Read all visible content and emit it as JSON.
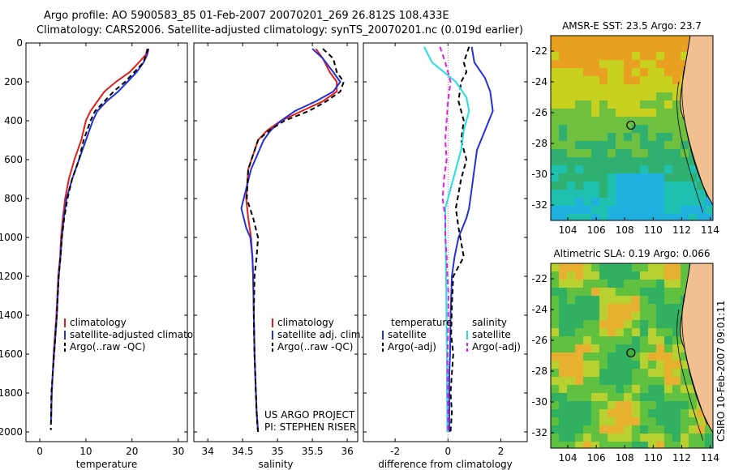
{
  "header": {
    "line1": "Argo profile: AO 5900583_85 01-Feb-2007 20070201_269 26.812S 108.433E",
    "line2": "Climatology: CARS2006. Satellite-adjusted climatology: synTS_20070201.nc (0.019d earlier)"
  },
  "colors": {
    "climatology": "#e0201a",
    "satellite": "#2430d8",
    "argo": "#000000",
    "sat_salinity": "#22e0e0",
    "argo_salinity": "#e020e0"
  },
  "chart_data": [
    {
      "type": "line",
      "xlabel": "temperature",
      "ylabel": "",
      "xlim": [
        -3,
        32
      ],
      "ylim": [
        2050,
        0
      ],
      "xticks": [
        0,
        10,
        20,
        30
      ],
      "yticks": [
        0,
        200,
        400,
        600,
        800,
        1000,
        1200,
        1400,
        1600,
        1800,
        2000
      ],
      "legend": [
        "climatology",
        "satellite-adjusted climatology",
        "Argo(..raw -QC)"
      ],
      "series": [
        {
          "name": "climatology",
          "color": "#e0201a",
          "dash": "",
          "x": [
            23.3,
            23.0,
            21.5,
            19.5,
            16.5,
            14.0,
            12.5,
            11.0,
            10.0,
            9.0,
            7.5,
            6.3,
            5.5,
            5.0,
            4.6,
            4.4,
            4.0,
            3.6,
            3.3,
            3.0,
            2.8,
            2.6,
            2.45
          ],
          "y": [
            30,
            60,
            100,
            150,
            200,
            250,
            300,
            350,
            400,
            500,
            600,
            700,
            800,
            900,
            1000,
            1100,
            1200,
            1400,
            1500,
            1600,
            1700,
            1800,
            1950
          ]
        },
        {
          "name": "satellite-adjusted climatology",
          "color": "#2430d8",
          "dash": "",
          "x": [
            23.6,
            23.3,
            22.5,
            21.0,
            19.0,
            17.0,
            14.5,
            12.5,
            11.5,
            10.0,
            8.5,
            7.0,
            5.8,
            5.2,
            4.8,
            4.5,
            4.1,
            3.7,
            3.4,
            3.1,
            2.8,
            2.6,
            2.45
          ],
          "y": [
            30,
            60,
            100,
            150,
            200,
            250,
            300,
            350,
            400,
            500,
            600,
            700,
            800,
            900,
            1000,
            1100,
            1200,
            1400,
            1500,
            1600,
            1700,
            1800,
            1950
          ]
        },
        {
          "name": "Argo(..raw -QC)",
          "color": "#000000",
          "dash": "6,4",
          "x": [
            23.5,
            23.0,
            22.5,
            20.5,
            18.5,
            16.0,
            14.0,
            12.0,
            11.0,
            9.5,
            8.5,
            7.0,
            6.0,
            5.3,
            4.8,
            4.5,
            4.1,
            3.7,
            3.4,
            3.1,
            2.8,
            2.5,
            2.4
          ],
          "y": [
            30,
            60,
            100,
            150,
            200,
            250,
            300,
            350,
            400,
            500,
            600,
            700,
            800,
            900,
            1000,
            1100,
            1200,
            1400,
            1500,
            1600,
            1700,
            1800,
            1990
          ]
        }
      ]
    },
    {
      "type": "line",
      "xlabel": "salinity",
      "ylabel": "",
      "xlim": [
        33.8,
        36.15
      ],
      "ylim": [
        2050,
        0
      ],
      "xticks": [
        34,
        34.5,
        35,
        35.5,
        36
      ],
      "xticklabels": [
        "34",
        "34.5",
        "35",
        "35.5",
        "36"
      ],
      "legend": [
        "climatology",
        "satellite adj. clim.",
        "Argo(..raw -QC)"
      ],
      "annotations": [
        "US ARGO PROJECT",
        "PI: STEPHEN RISER"
      ],
      "series": [
        {
          "name": "climatology",
          "color": "#e0201a",
          "dash": "",
          "x": [
            35.55,
            35.65,
            35.75,
            35.85,
            35.85,
            35.65,
            35.35,
            35.05,
            34.85,
            34.72,
            34.58,
            34.55,
            34.58,
            34.62,
            34.64,
            34.65,
            34.66,
            34.67,
            34.69,
            34.7,
            34.72
          ],
          "y": [
            30,
            80,
            150,
            200,
            250,
            300,
            350,
            400,
            450,
            500,
            650,
            800,
            900,
            1000,
            1100,
            1200,
            1400,
            1600,
            1800,
            1900,
            2000
          ]
        },
        {
          "name": "satellite adj. clim.",
          "color": "#2430d8",
          "dash": "",
          "x": [
            35.5,
            35.65,
            35.8,
            35.9,
            35.8,
            35.55,
            35.25,
            35.05,
            34.9,
            34.8,
            34.62,
            34.48,
            34.55,
            34.61,
            34.64,
            34.65,
            34.66,
            34.67,
            34.69,
            34.7,
            34.72
          ],
          "y": [
            30,
            80,
            150,
            200,
            250,
            300,
            350,
            400,
            450,
            500,
            650,
            850,
            950,
            1000,
            1100,
            1200,
            1400,
            1600,
            1800,
            1900,
            2000
          ]
        },
        {
          "name": "Argo(..raw -QC)",
          "color": "#000000",
          "dash": "6,4",
          "x": [
            35.65,
            35.8,
            35.85,
            35.95,
            35.9,
            35.7,
            35.45,
            35.1,
            34.88,
            34.72,
            34.58,
            34.56,
            34.65,
            34.72,
            34.7,
            34.67,
            34.66,
            34.67,
            34.69,
            34.7,
            34.72
          ],
          "y": [
            30,
            80,
            150,
            200,
            250,
            300,
            350,
            400,
            450,
            500,
            650,
            800,
            900,
            1000,
            1100,
            1200,
            1400,
            1600,
            1800,
            1900,
            2000
          ]
        }
      ]
    },
    {
      "type": "line",
      "xlabel": "difference from climatology",
      "ylabel": "",
      "xlim": [
        -3.2,
        3.0
      ],
      "ylim": [
        2050,
        0
      ],
      "xticks": [
        -2,
        0,
        2
      ],
      "legend_headers": [
        "temperature",
        "salinity"
      ],
      "legend": [
        "satellite",
        "Argo(-adj)",
        "satellite",
        "Argo(-adj)"
      ],
      "series": [
        {
          "name": "satellite",
          "group": "temperature",
          "color": "#2430d8",
          "dash": "",
          "x": [
            0.9,
            1.0,
            1.4,
            1.6,
            1.7,
            1.4,
            1.1,
            1.0,
            0.9,
            0.8,
            0.7,
            0.4,
            0.25,
            0.15,
            0.1,
            0.08,
            0.05,
            0.05,
            0.05,
            0.05
          ],
          "y": [
            20,
            100,
            180,
            250,
            350,
            450,
            550,
            650,
            750,
            850,
            900,
            1000,
            1100,
            1200,
            1400,
            1600,
            1700,
            1800,
            1900,
            2000
          ]
        },
        {
          "name": "Argo(-adj)",
          "group": "temperature",
          "color": "#000000",
          "dash": "6,4",
          "x": [
            0.8,
            0.6,
            0.7,
            0.5,
            0.4,
            0.6,
            0.5,
            0.7,
            0.5,
            0.3,
            0.4,
            0.6,
            0.2,
            0.15,
            0.12,
            0.2,
            0.15,
            0.1,
            0.15,
            0.1
          ],
          "y": [
            20,
            100,
            150,
            200,
            300,
            400,
            500,
            600,
            700,
            850,
            950,
            1100,
            1200,
            1350,
            1500,
            1600,
            1700,
            1800,
            1900,
            2000
          ]
        },
        {
          "name": "satellite",
          "group": "salinity",
          "color": "#22e0e0",
          "dash": "",
          "x": [
            -0.9,
            -0.6,
            0.3,
            0.7,
            0.8,
            0.6,
            0.5,
            0.3,
            0.1,
            -0.1,
            -0.1,
            -0.08,
            -0.06,
            -0.05,
            -0.04,
            -0.04,
            -0.03,
            -0.03
          ],
          "y": [
            20,
            100,
            200,
            280,
            350,
            450,
            550,
            650,
            750,
            850,
            950,
            1100,
            1300,
            1500,
            1650,
            1800,
            1900,
            2000
          ]
        },
        {
          "name": "Argo(-adj)",
          "group": "salinity",
          "color": "#e020e0",
          "dash": "6,4",
          "x": [
            -0.3,
            -0.1,
            0.1,
            0.0,
            -0.05,
            -0.1,
            -0.05,
            -0.15,
            -0.2,
            -0.1,
            -0.1,
            -0.05,
            0.02,
            0.0,
            -0.02,
            -0.01,
            0.0,
            0.0
          ],
          "y": [
            20,
            100,
            200,
            300,
            400,
            500,
            600,
            700,
            800,
            900,
            1000,
            1100,
            1300,
            1500,
            1650,
            1800,
            1900,
            2000
          ]
        }
      ]
    },
    {
      "type": "heatmap",
      "title": "AMSR-E SST: 23.5 Argo: 23.7",
      "xlim": [
        102.8,
        114.2
      ],
      "ylim": [
        -33,
        -21
      ],
      "xticks": [
        104,
        106,
        108,
        110,
        112,
        114
      ],
      "yticks": [
        -22,
        -24,
        -26,
        -28,
        -30,
        -32
      ],
      "marker": {
        "lon": 108.433,
        "lat": -26.812
      }
    },
    {
      "type": "heatmap",
      "title": "Altimetric SLA: 0.19 Argo: 0.066",
      "xlim": [
        102.8,
        114.2
      ],
      "ylim": [
        -33,
        -21
      ],
      "xticks": [
        104,
        106,
        108,
        110,
        112,
        114
      ],
      "yticks": [
        -22,
        -24,
        -26,
        -28,
        -30,
        -32
      ],
      "marker": {
        "lon": 108.433,
        "lat": -26.812
      }
    }
  ],
  "footer": {
    "side_note": "CSIRO 10-Feb-2007 09:01:11"
  }
}
